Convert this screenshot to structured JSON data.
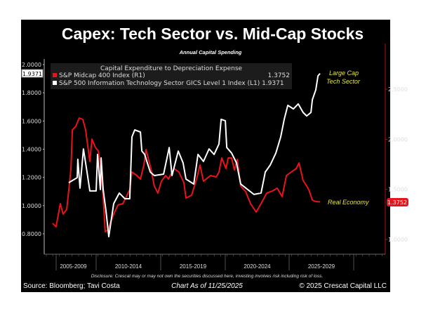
{
  "chart_data": {
    "type": "line",
    "title": "Capex: Tech Sector vs. Mid-Cap Stocks",
    "subtitle": "Annual Capital Spending",
    "legend_title": "Capital Expenditure to Depreciation Expense",
    "legend_placement": "top-left",
    "xlim": [
      2005.0,
      2025.9
    ],
    "left_axis": {
      "ticks": [
        "2.0000",
        "1.8000",
        "1.6000",
        "1.4000",
        "1.2000",
        "1.0000",
        "0.8000"
      ],
      "tick_values": [
        2.0,
        1.8,
        1.6,
        1.4,
        1.2,
        1.0,
        0.8
      ],
      "ylim": [
        0.72,
        2.18
      ],
      "last_value_label": "1.9371"
    },
    "right_axis": {
      "ticks": [
        "2.5000",
        "2.0000",
        "1.5000",
        "1.0000"
      ],
      "tick_values": [
        2.5,
        2.0,
        1.5,
        1.0
      ],
      "ylim": [
        0.9,
        2.75
      ],
      "last_value_label": "1.3752"
    },
    "period_labels": [
      "2005-2009",
      "2010-2014",
      "2015-2019",
      "2020-2024",
      "2025-2029"
    ],
    "series": [
      {
        "name": "S&P Midcap 400 Index",
        "axis_tag": "(R1)",
        "axis": "right",
        "last": "1.3752",
        "color": "#e8141c",
        "x": [
          2005.0,
          2005.27,
          2005.6,
          2005.82,
          2006.1,
          2006.32,
          2006.43,
          2006.54,
          2006.81,
          2007.08,
          2007.36,
          2007.58,
          2007.91,
          2008.07,
          2008.35,
          2008.57,
          2008.73,
          2008.95,
          2009.11,
          2009.33,
          2009.5,
          2009.77,
          2010.1,
          2010.49,
          2010.76,
          2011.03,
          2011.2,
          2011.58,
          2011.86,
          2012.13,
          2012.3,
          2012.68,
          2012.95,
          2013.23,
          2013.5,
          2013.83,
          2014.05,
          2014.49,
          2014.87,
          2015.26,
          2015.42,
          2015.86,
          2016.25,
          2016.52,
          2016.79,
          2017.34,
          2017.78,
          2018.0,
          2018.22,
          2018.55,
          2018.72,
          2018.99,
          2019.21,
          2019.43,
          2019.7,
          2020.09,
          2020.47,
          2020.91,
          2021.29,
          2021.73,
          2022.17,
          2022.56,
          2022.94,
          2023.27,
          2023.65,
          2024.04,
          2024.26,
          2024.58,
          2024.86,
          2025.02,
          2025.3,
          2025.57,
          2025.9
        ],
        "y": [
          1.162,
          1.127,
          1.358,
          1.253,
          1.302,
          1.568,
          1.708,
          2.094,
          2.129,
          2.213,
          2.199,
          2.094,
          1.778,
          2.002,
          1.918,
          1.883,
          1.743,
          1.428,
          1.077,
          1.098,
          1.162,
          1.253,
          1.344,
          1.358,
          1.428,
          1.498,
          1.673,
          1.638,
          1.603,
          1.743,
          1.897,
          1.708,
          1.533,
          1.463,
          1.582,
          1.638,
          1.603,
          1.708,
          1.673,
          1.568,
          1.414,
          1.442,
          1.603,
          1.743,
          1.582,
          1.638,
          1.624,
          1.673,
          1.813,
          1.708,
          1.813,
          1.813,
          1.694,
          1.799,
          1.533,
          1.477,
          1.358,
          1.274,
          1.358,
          1.463,
          1.484,
          1.512,
          1.428,
          1.638,
          1.673,
          1.708,
          1.764,
          1.589,
          1.533,
          1.498,
          1.393,
          1.379,
          1.3752
        ]
      },
      {
        "name": "S&P 500 Information Technology Sector GICS Level 1 Index",
        "axis_tag": "(L1)",
        "axis": "left",
        "last": "1.9371",
        "color": "#ffffff",
        "x": [
          2006.26,
          2006.92,
          2006.97,
          2007.14,
          2007.41,
          2007.69,
          2007.91,
          2008.4,
          2008.51,
          2008.73,
          2008.79,
          2008.95,
          2009.17,
          2009.39,
          2009.77,
          2010.21,
          2010.65,
          2011.03,
          2011.2,
          2011.42,
          2011.86,
          2011.97,
          2012.19,
          2012.63,
          2012.95,
          2013.67,
          2014.11,
          2014.33,
          2014.82,
          2015.2,
          2015.42,
          2016.03,
          2016.36,
          2016.79,
          2017.23,
          2017.62,
          2018.0,
          2018.17,
          2018.5,
          2018.61,
          2018.99,
          2019.37,
          2019.7,
          2020.25,
          2020.74,
          2021.29,
          2021.62,
          2022.01,
          2022.45,
          2022.83,
          2023.1,
          2023.38,
          2023.82,
          2024.2,
          2024.58,
          2024.86,
          2025.19,
          2025.3,
          2025.57,
          2025.74,
          2025.9
        ],
        "y": [
          1.163,
          1.198,
          1.328,
          1.124,
          1.402,
          1.238,
          1.104,
          1.104,
          1.363,
          1.114,
          1.338,
          1.114,
          0.964,
          0.78,
          1.014,
          1.089,
          1.049,
          1.049,
          1.487,
          1.537,
          1.522,
          1.387,
          1.363,
          1.238,
          1.213,
          1.223,
          1.412,
          1.213,
          1.387,
          1.303,
          1.188,
          1.153,
          1.363,
          1.313,
          1.402,
          1.363,
          1.437,
          1.612,
          1.602,
          1.412,
          1.373,
          1.303,
          1.153,
          1.114,
          1.079,
          1.089,
          1.238,
          1.288,
          1.373,
          1.487,
          1.612,
          1.711,
          1.686,
          1.721,
          1.661,
          1.636,
          1.661,
          1.751,
          1.821,
          1.92,
          1.9371
        ]
      }
    ],
    "annotations": [
      "Large Cap",
      "Tech Sector",
      "Real Economy"
    ]
  },
  "disclosure": "Disclosure: Crescat may or may not own the securities discussed here, investing involves risk including risk of loss.",
  "footer": {
    "source": "Source: Bloomberg; Tavi Costa",
    "as_of": "Chart As of 11/25/2025",
    "copyright": "© 2025 Crescat Capital LLC"
  }
}
